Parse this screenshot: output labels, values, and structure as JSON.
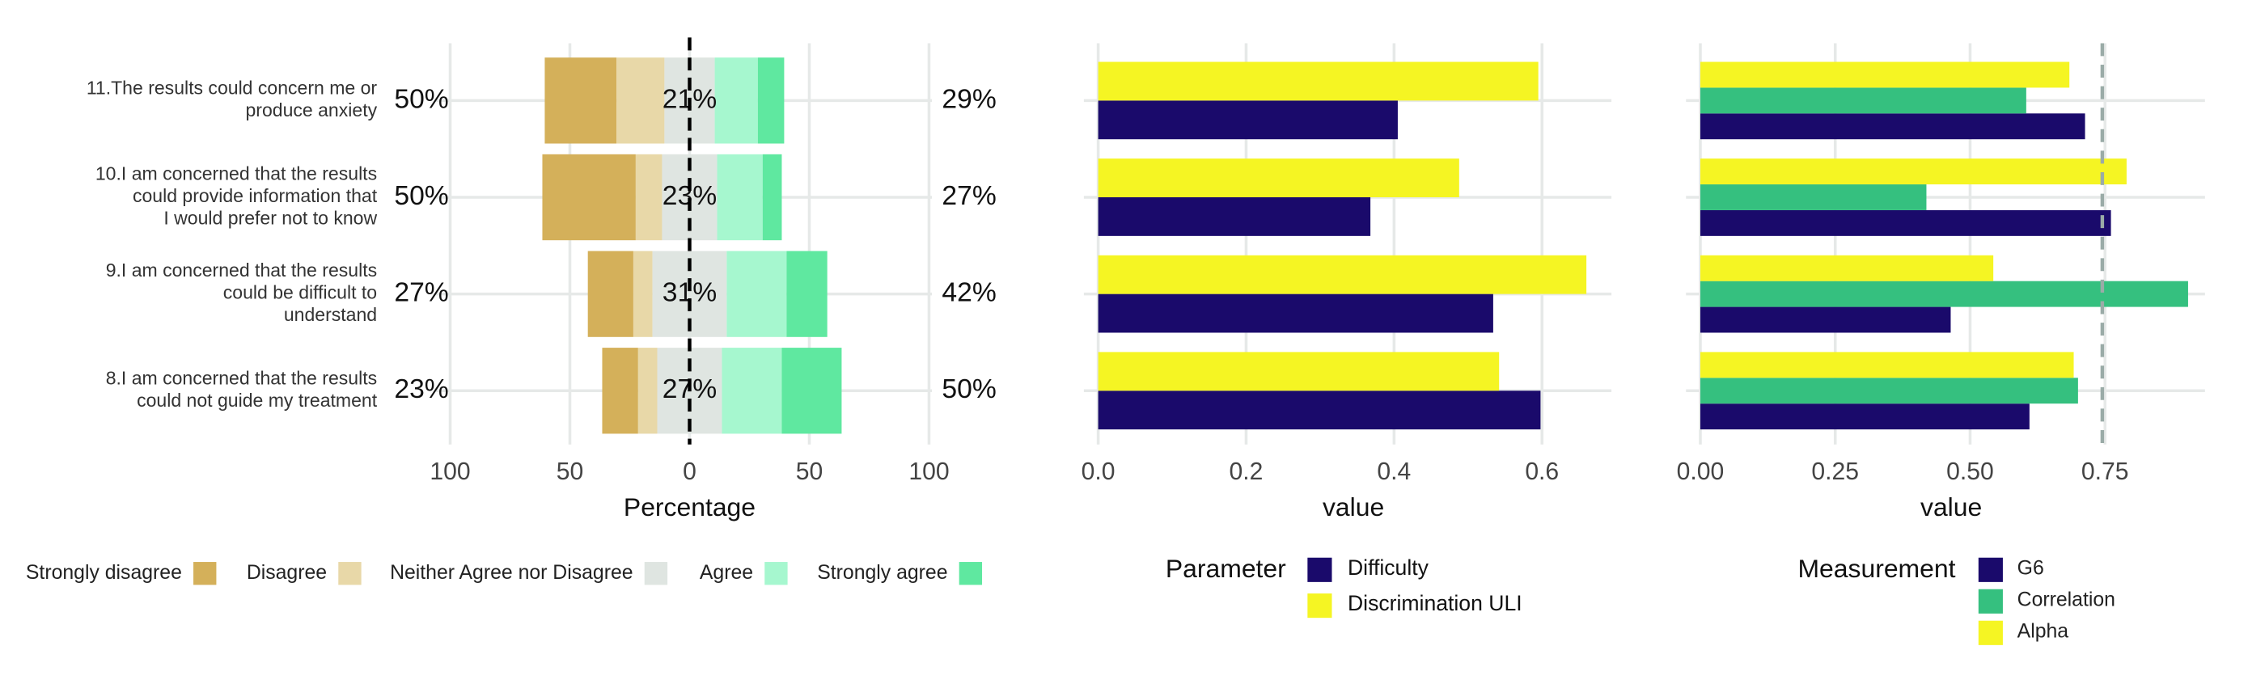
{
  "chart_data": [
    {
      "type": "likert",
      "categories": [
        "11.The results could concern me or\nproduce anxiety",
        "10.I am concerned that the results\ncould provide information that\nI would prefer not to know",
        "9.I am concerned that the results\ncould be difficult to\nunderstand",
        "8.I am concerned that the results\ncould not guide my treatment"
      ],
      "series": [
        {
          "name": "Strongly disagree",
          "color": "#d4b05a",
          "values": [
            30,
            39,
            19,
            15
          ]
        },
        {
          "name": "Disagree",
          "color": "#e8d8a8",
          "values": [
            20,
            11,
            8,
            8
          ]
        },
        {
          "name": "Neither Agree nor Disagree",
          "color": "#dfe5e1",
          "values": [
            21,
            23,
            31,
            27
          ]
        },
        {
          "name": "Agree",
          "color": "#a6f7cf",
          "values": [
            18,
            19,
            25,
            25
          ]
        },
        {
          "name": "Strongly agree",
          "color": "#5fe8a0",
          "values": [
            11,
            8,
            17,
            25
          ]
        }
      ],
      "left_labels": [
        "50%",
        "50%",
        "27%",
        "23%"
      ],
      "center_labels": [
        "21%",
        "23%",
        "31%",
        "27%"
      ],
      "right_labels": [
        "29%",
        "27%",
        "42%",
        "50%"
      ],
      "xlim": [
        -100,
        100
      ],
      "xticks": [
        {
          "value": -100,
          "label": "100"
        },
        {
          "value": -50,
          "label": "50"
        },
        0,
        50,
        100
      ],
      "xlabel": "Percentage",
      "grid": true
    },
    {
      "type": "hbar",
      "series": [
        {
          "name": "Difficulty",
          "color": "#1a0a6b",
          "values": [
            0.405,
            0.368,
            0.534,
            0.598
          ]
        },
        {
          "name": "Discrimination ULI",
          "color": "#f5f523",
          "values": [
            0.595,
            0.488,
            0.66,
            0.542
          ]
        }
      ],
      "xlim": [
        0,
        0.69
      ],
      "xticks": [
        {
          "value": 0,
          "label": "0.0"
        },
        0.2,
        0.4,
        0.6
      ],
      "xlabel": "value",
      "legend_title": "Parameter",
      "grid": true
    },
    {
      "type": "hbar",
      "series": [
        {
          "name": "G6",
          "color": "#1a0a6b",
          "values": [
            0.713,
            0.761,
            0.464,
            0.61
          ]
        },
        {
          "name": "Correlation",
          "color": "#35c07f",
          "values": [
            0.604,
            0.419,
            0.904,
            0.7
          ]
        },
        {
          "name": "Alpha",
          "color": "#f5f523",
          "values": [
            0.684,
            0.79,
            0.543,
            0.692
          ]
        }
      ],
      "xlim": [
        0,
        0.93
      ],
      "xticks": [
        {
          "value": 0,
          "label": "0.00"
        },
        0.25,
        {
          "value": 0.5,
          "label": "0.50"
        },
        0.75
      ],
      "reference_line": 0.745,
      "xlabel": "value",
      "legend_title": "Measurement",
      "grid": true
    }
  ]
}
